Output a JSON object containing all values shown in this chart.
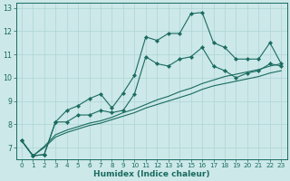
{
  "xlabel": "Humidex (Indice chaleur)",
  "ylabel": "",
  "bg_color": "#cce8e8",
  "line_color": "#1a6b60",
  "grid_color": "#aed4d4",
  "xlim": [
    -0.5,
    23.5
  ],
  "ylim": [
    6.5,
    13.2
  ],
  "xticks": [
    0,
    1,
    2,
    3,
    4,
    5,
    6,
    7,
    8,
    9,
    10,
    11,
    12,
    13,
    14,
    15,
    16,
    17,
    18,
    19,
    20,
    21,
    22,
    23
  ],
  "yticks": [
    7,
    8,
    9,
    10,
    11,
    12,
    13
  ],
  "series": {
    "max": [
      7.3,
      6.65,
      6.7,
      8.1,
      8.6,
      8.8,
      9.1,
      9.3,
      8.7,
      9.35,
      10.1,
      11.75,
      11.6,
      11.9,
      11.9,
      12.75,
      12.8,
      11.5,
      11.3,
      10.8,
      10.8,
      10.8,
      11.5,
      10.6
    ],
    "mean": [
      7.3,
      6.65,
      6.7,
      8.1,
      8.1,
      8.4,
      8.4,
      8.6,
      8.5,
      8.6,
      9.3,
      10.9,
      10.6,
      10.5,
      10.8,
      10.9,
      11.3,
      10.5,
      10.3,
      10.0,
      10.2,
      10.3,
      10.6,
      10.5
    ],
    "trend1": [
      7.3,
      6.65,
      7.05,
      7.55,
      7.75,
      7.9,
      8.05,
      8.15,
      8.3,
      8.5,
      8.65,
      8.85,
      9.05,
      9.2,
      9.4,
      9.55,
      9.75,
      9.9,
      10.05,
      10.15,
      10.25,
      10.35,
      10.5,
      10.6
    ],
    "trend2": [
      7.3,
      6.65,
      7.0,
      7.45,
      7.65,
      7.8,
      7.95,
      8.05,
      8.2,
      8.35,
      8.5,
      8.7,
      8.85,
      9.0,
      9.15,
      9.3,
      9.5,
      9.65,
      9.75,
      9.85,
      9.95,
      10.05,
      10.2,
      10.3
    ]
  },
  "marker": "D",
  "markersize": 2.2,
  "linewidth": 0.8,
  "xlabel_fontsize": 6.5,
  "tick_fontsize": 5.2
}
